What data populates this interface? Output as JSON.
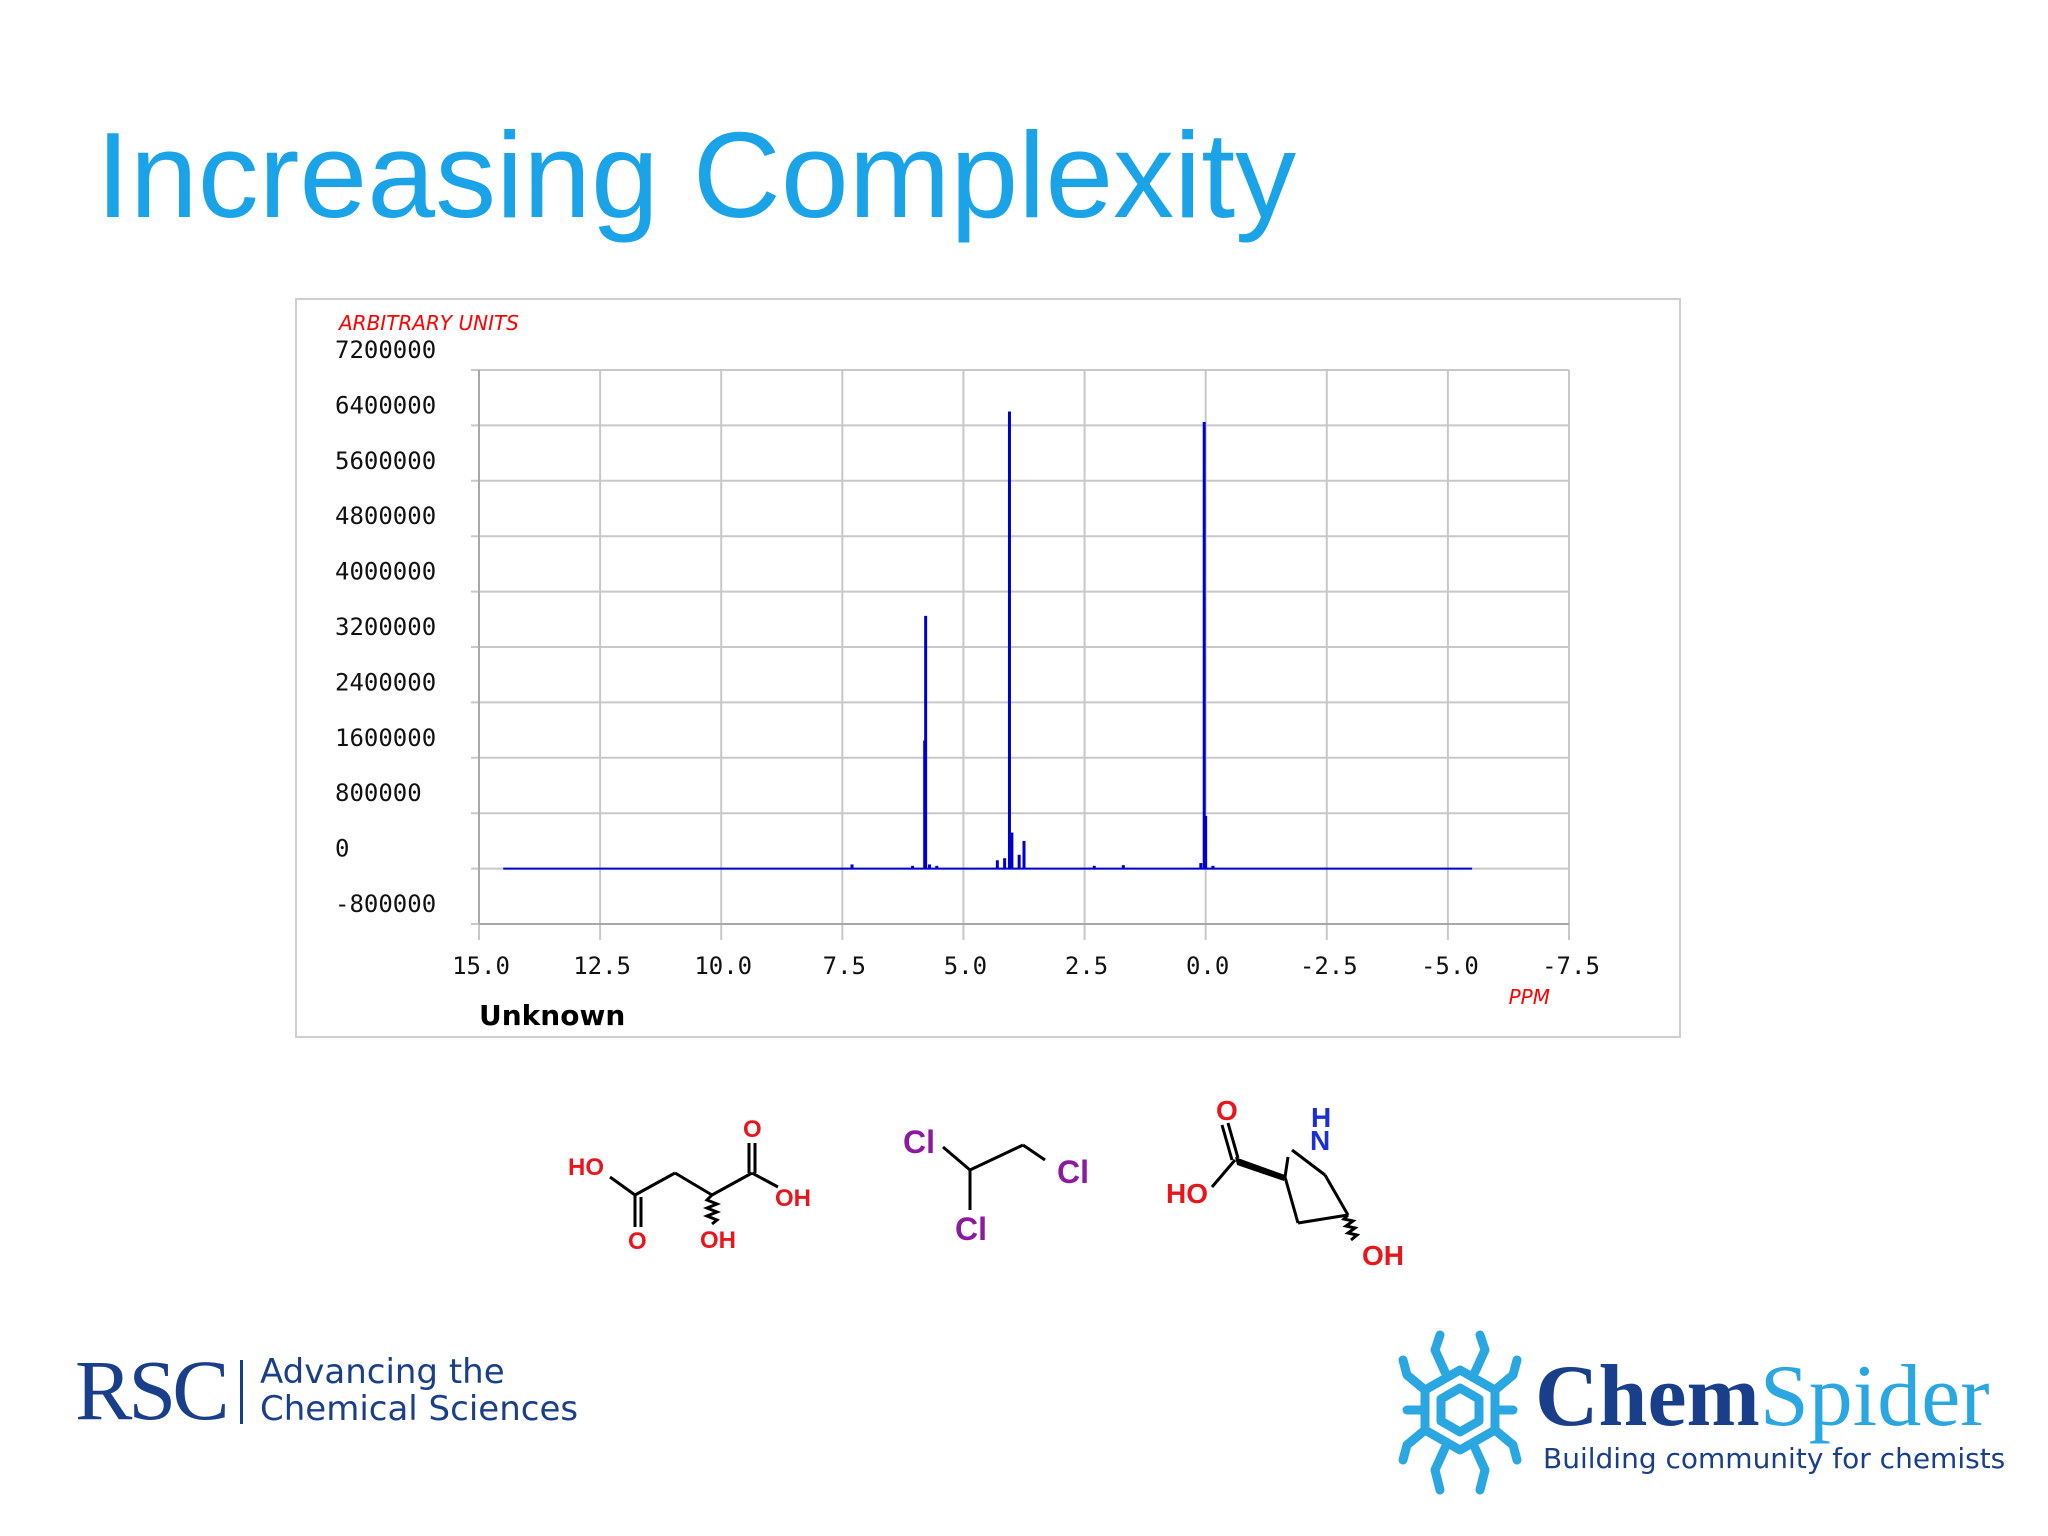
{
  "slide": {
    "title": "Increasing Complexity"
  },
  "chart_data": {
    "type": "line",
    "ylabel": "ARBITRARY UNITS",
    "xlabel": "PPM",
    "caption": "Unknown",
    "x_ticks": [
      "15.0",
      "12.5",
      "10.0",
      "7.5",
      "5.0",
      "2.5",
      "0.0",
      "-2.5",
      "-5.0",
      "-7.5"
    ],
    "y_ticks": [
      "7200000",
      "6400000",
      "5600000",
      "4800000",
      "4000000",
      "3200000",
      "2400000",
      "1600000",
      "800000",
      "0",
      "-800000"
    ],
    "xlim": [
      15.0,
      -7.5
    ],
    "ylim": [
      -800000,
      7200000
    ],
    "grid": true,
    "baseline": {
      "x_start": 14.5,
      "x_end": -5.5,
      "y": 0
    },
    "series": [
      {
        "color": "#0000cc",
        "peaks": [
          {
            "x": 7.3,
            "y": 60000
          },
          {
            "x": 6.05,
            "y": 40000
          },
          {
            "x": 5.8,
            "y": 1850000
          },
          {
            "x": 5.78,
            "y": 3650000
          },
          {
            "x": 5.7,
            "y": 60000
          },
          {
            "x": 5.55,
            "y": 40000
          },
          {
            "x": 4.3,
            "y": 120000
          },
          {
            "x": 4.15,
            "y": 150000
          },
          {
            "x": 4.05,
            "y": 6600000
          },
          {
            "x": 4.0,
            "y": 520000
          },
          {
            "x": 3.85,
            "y": 200000
          },
          {
            "x": 3.75,
            "y": 400000
          },
          {
            "x": 2.3,
            "y": 40000
          },
          {
            "x": 1.7,
            "y": 50000
          },
          {
            "x": 0.1,
            "y": 80000
          },
          {
            "x": 0.03,
            "y": 6450000
          },
          {
            "x": 0.0,
            "y": 760000
          },
          {
            "x": -0.15,
            "y": 40000
          }
        ]
      }
    ]
  },
  "molecules": {
    "malic_acid": {
      "labels": [
        "HO",
        "O",
        "O",
        "OH",
        "OH"
      ],
      "colors": {
        "O": "#e8161c"
      }
    },
    "dichloroethane": {
      "labels": [
        "Cl",
        "Cl",
        "Cl"
      ],
      "colors": {
        "Cl": "#8b1a9e"
      }
    },
    "hydroxyproline": {
      "labels": [
        "O",
        "HO",
        "N",
        "H",
        "OH"
      ],
      "colors": {
        "O": "#e8161c",
        "N": "#1a2fd8"
      }
    }
  },
  "logos": {
    "rsc": {
      "letters": "RSC",
      "line1": "Advancing the",
      "line2": "Chemical Sciences"
    },
    "chemspider": {
      "name_a": "Chem",
      "name_b": "Spider",
      "tagline": "Building community for chemists",
      "icon": "spider-icon"
    }
  },
  "colors": {
    "title": "#1aa3e6",
    "spectrum": "#0000cc",
    "axis_label": "#ff0000",
    "brand_dark": "#1a3f8a",
    "brand_light": "#2aa6e0"
  }
}
